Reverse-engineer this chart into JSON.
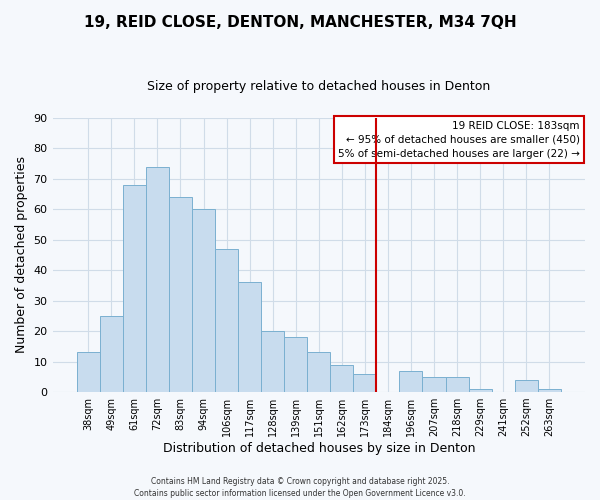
{
  "title": "19, REID CLOSE, DENTON, MANCHESTER, M34 7QH",
  "subtitle": "Size of property relative to detached houses in Denton",
  "xlabel": "Distribution of detached houses by size in Denton",
  "ylabel": "Number of detached properties",
  "categories": [
    "38sqm",
    "49sqm",
    "61sqm",
    "72sqm",
    "83sqm",
    "94sqm",
    "106sqm",
    "117sqm",
    "128sqm",
    "139sqm",
    "151sqm",
    "162sqm",
    "173sqm",
    "184sqm",
    "196sqm",
    "207sqm",
    "218sqm",
    "229sqm",
    "241sqm",
    "252sqm",
    "263sqm"
  ],
  "values": [
    13,
    25,
    68,
    74,
    64,
    60,
    47,
    36,
    20,
    18,
    13,
    9,
    6,
    0,
    7,
    5,
    5,
    1,
    0,
    4,
    1
  ],
  "bar_color": "#c8dcee",
  "bar_edge_color": "#7ab0d0",
  "grid_color": "#d0dce8",
  "background_color": "#f5f8fc",
  "vline_x_index": 13,
  "vline_color": "#cc0000",
  "ylim": [
    0,
    90
  ],
  "yticks": [
    0,
    10,
    20,
    30,
    40,
    50,
    60,
    70,
    80,
    90
  ],
  "legend_title": "19 REID CLOSE: 183sqm",
  "legend_line1": "← 95% of detached houses are smaller (450)",
  "legend_line2": "5% of semi-detached houses are larger (22) →",
  "legend_box_color": "#cc0000",
  "footer_line1": "Contains HM Land Registry data © Crown copyright and database right 2025.",
  "footer_line2": "Contains public sector information licensed under the Open Government Licence v3.0."
}
